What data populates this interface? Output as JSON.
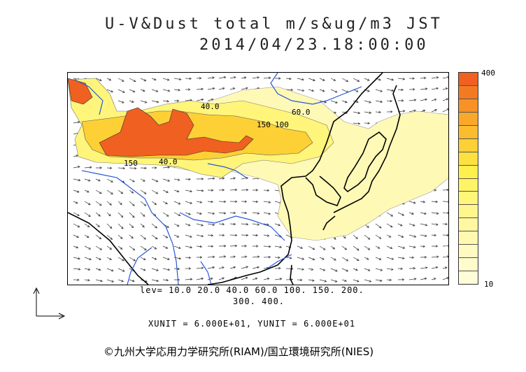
{
  "title": {
    "line1": "U-V&Dust total m/s&ug/m3 JST",
    "line2": "2014/04/23.18:00:00"
  },
  "colorbar": {
    "max_label": "400",
    "min_label": "10",
    "colors": [
      "#f06020",
      "#f47a22",
      "#f79226",
      "#f9a82a",
      "#fbbd2e",
      "#fdd035",
      "#fee140",
      "#fff04e",
      "#fff465",
      "#fff67a",
      "#fff78e",
      "#fff8a0",
      "#fff9b0",
      "#fffabf",
      "#fffbcc",
      "#fffcd8"
    ]
  },
  "levels": {
    "line1": "lev= 10.0 20.0 40.0 60.0 100. 150. 200.",
    "line2": "300. 400."
  },
  "units": "XUNIT = 6.000E+01, YUNIT = 6.000E+01",
  "contour_labels": [
    "40.0",
    "60.0",
    "100",
    "150",
    "40.0",
    "150"
  ],
  "copyright": "©九州大学応用力学研究所(RIAM)/国立環境研究所(NIES)"
}
